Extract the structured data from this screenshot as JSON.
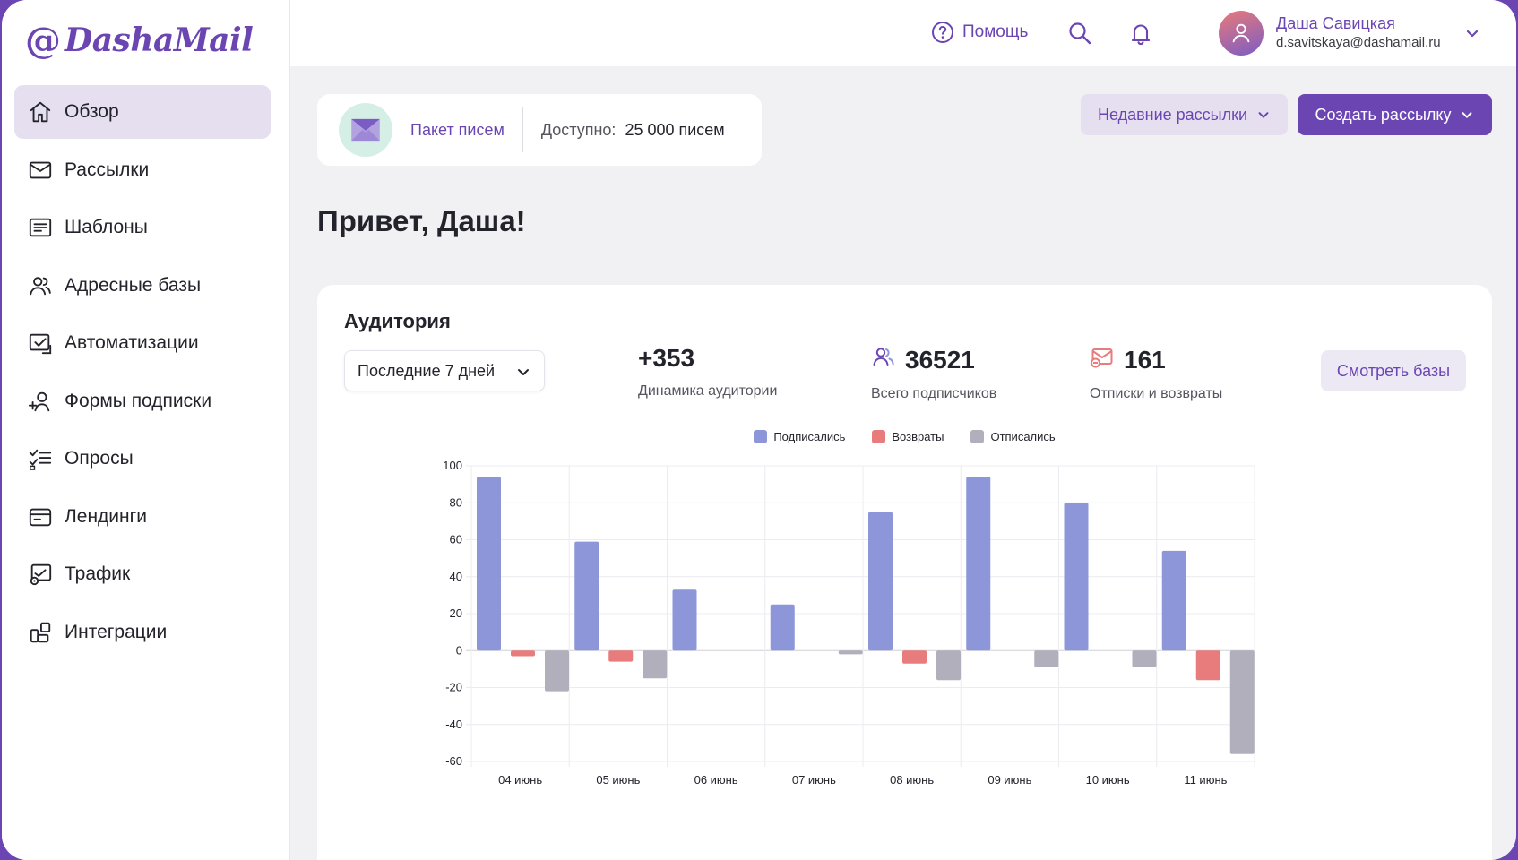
{
  "brand": {
    "at": "@",
    "name": "DashaMail",
    "color": "#6b46b3"
  },
  "sidebar": {
    "items": [
      {
        "label": "Обзор",
        "icon": "home-icon",
        "active": true
      },
      {
        "label": "Рассылки",
        "icon": "mail-icon"
      },
      {
        "label": "Шаблоны",
        "icon": "template-icon"
      },
      {
        "label": "Адресные базы",
        "icon": "users-icon"
      },
      {
        "label": "Автоматизации",
        "icon": "automation-icon"
      },
      {
        "label": "Формы подписки",
        "icon": "add-user-icon"
      },
      {
        "label": "Опросы",
        "icon": "survey-icon"
      },
      {
        "label": "Лендинги",
        "icon": "landing-icon"
      },
      {
        "label": "Трафик",
        "icon": "traffic-icon"
      },
      {
        "label": "Интеграции",
        "icon": "integrations-icon"
      }
    ]
  },
  "header": {
    "help_label": "Помощь",
    "user": {
      "name": "Даша Савицкая",
      "email": "d.savitskaya@dashamail.ru"
    }
  },
  "package": {
    "link": "Пакет писем",
    "available_label": "Доступно:",
    "available_value": "25 000 писем"
  },
  "actions": {
    "recent": "Недавние рассылки",
    "create": "Создать рассылку"
  },
  "greeting": "Привет, Даша!",
  "audience": {
    "title": "Аудитория",
    "period": "Последние 7 дней",
    "stats": [
      {
        "value": "+353",
        "label": "Динамика аудитории"
      },
      {
        "value": "36521",
        "label": "Всего подписчиков",
        "icon": "subscribers-icon"
      },
      {
        "value": "161",
        "label": "Отписки и возвраты",
        "icon": "unsubscribe-icon"
      }
    ],
    "view_bases": "Смотреть базы"
  },
  "chart_data": {
    "type": "bar",
    "categories": [
      "04 июнь",
      "05 июнь",
      "06 июнь",
      "07 июнь",
      "08 июнь",
      "09 июнь",
      "10 июнь",
      "11 июнь"
    ],
    "series": [
      {
        "name": "Подписались",
        "color": "#8c96d9",
        "values": [
          94,
          59,
          33,
          25,
          75,
          94,
          80,
          54
        ]
      },
      {
        "name": "Возвраты",
        "color": "#e87c7c",
        "values": [
          -3,
          -6,
          0,
          0,
          -7,
          0,
          0,
          -16
        ]
      },
      {
        "name": "Отписались",
        "color": "#b0afbb",
        "values": [
          -22,
          -15,
          0,
          -2,
          -16,
          -9,
          -9,
          -56
        ]
      }
    ],
    "ylim": [
      -60,
      100
    ],
    "yticks": [
      100,
      80,
      60,
      40,
      20,
      0,
      -20,
      -40,
      -60
    ],
    "grid": true,
    "legend": "top-center"
  }
}
